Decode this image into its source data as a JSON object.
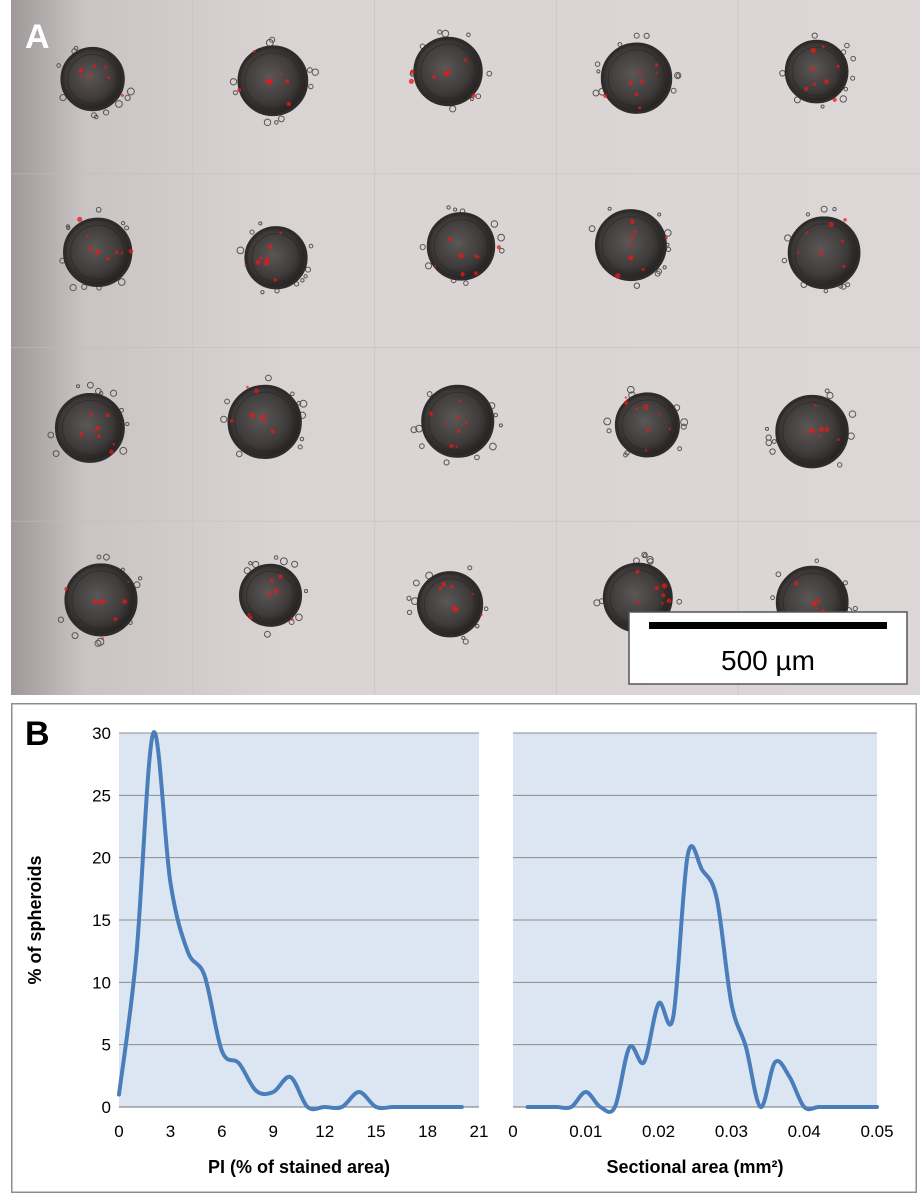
{
  "panel_a": {
    "label": "A",
    "scale_bar_label": "500 µm",
    "colors": {
      "background": "#d9d3d3",
      "spheroid": "#2e2b2b",
      "stain": "#e81818"
    },
    "spheroid_grid": {
      "rows": 4,
      "columns": 5
    }
  },
  "panel_b": {
    "label": "B"
  },
  "chart_data": [
    {
      "type": "line",
      "xlabel": "PI (% of stained area)",
      "ylabel": "% of spheroids",
      "xlim": [
        0,
        21
      ],
      "ylim": [
        0,
        30
      ],
      "xticks": [
        "0",
        "3",
        "6",
        "9",
        "12",
        "15",
        "18",
        "21"
      ],
      "yticks": [
        "0",
        "5",
        "10",
        "15",
        "20",
        "25",
        "30"
      ],
      "grid": true,
      "color": "#4a7ebb",
      "plot_background": "#dce6f2",
      "x": [
        0,
        1,
        2,
        3,
        4,
        5,
        6,
        7,
        8,
        9,
        10,
        11,
        12,
        13,
        14,
        15,
        16,
        17,
        18,
        19,
        20
      ],
      "y": [
        1,
        12,
        30,
        18,
        12.5,
        10.5,
        4.5,
        3.5,
        1.3,
        1.2,
        2.4,
        0,
        0,
        0,
        1.2,
        0,
        0,
        0,
        0,
        0,
        0
      ]
    },
    {
      "type": "line",
      "xlabel": "Sectional area (mm²)",
      "ylabel": "",
      "xlim": [
        0,
        0.05
      ],
      "ylim": [
        0,
        30
      ],
      "xticks": [
        "0",
        "0.01",
        "0.02",
        "0.03",
        "0.04",
        "0.05"
      ],
      "grid": true,
      "color": "#4a7ebb",
      "plot_background": "#dce6f2",
      "x": [
        0.002,
        0.004,
        0.006,
        0.008,
        0.01,
        0.012,
        0.014,
        0.016,
        0.018,
        0.02,
        0.022,
        0.024,
        0.026,
        0.028,
        0.03,
        0.032,
        0.034,
        0.036,
        0.038,
        0.04,
        0.042,
        0.044,
        0.046,
        0.048,
        0.05
      ],
      "y": [
        0,
        0,
        0,
        0,
        1.2,
        0,
        0,
        4.8,
        3.6,
        8.3,
        7.2,
        20.2,
        19,
        16.7,
        8.3,
        4.8,
        0,
        3.6,
        2.4,
        0,
        0,
        0,
        0,
        0,
        0
      ]
    }
  ]
}
